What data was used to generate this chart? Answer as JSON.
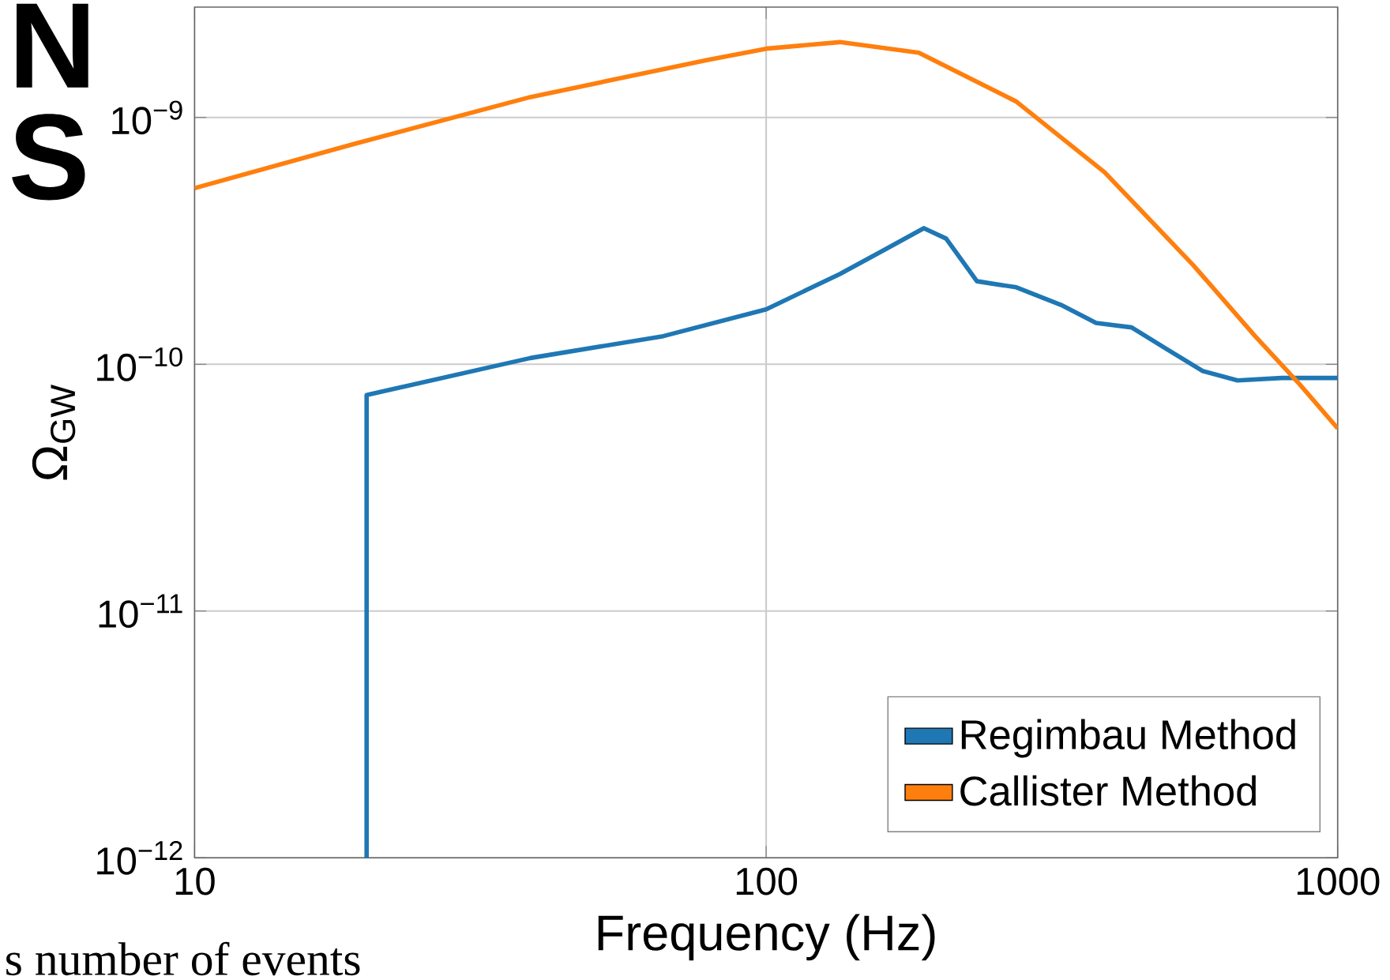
{
  "chart_data": {
    "type": "line",
    "xlabel": "Frequency (Hz)",
    "ylabel": "Ω$_{GW}$",
    "log": "xy",
    "grid": true,
    "legend": "bottom right",
    "xlim": [
      10,
      1000
    ],
    "ylim": [
      1e-12,
      2.8e-09
    ],
    "xticks": [
      10,
      100,
      1000
    ],
    "yticks": [
      {
        "value": 1e-12,
        "label": "10$^{−12}$"
      },
      {
        "value": 1e-11,
        "label": "10$^{−11}$"
      },
      {
        "value": 1e-10,
        "label": "10$^{−10}$"
      },
      {
        "value": 1e-09,
        "label": "10$^{−9}$"
      }
    ],
    "annotations": [
      "N",
      "S",
      "s number of events"
    ],
    "series": [
      {
        "name": "Regimbau Method",
        "color": "#1f77b4",
        "x": [
          20,
          20,
          38.7,
          66.1,
          100,
          134.6,
          160.7,
          188.8,
          206.5,
          233.8,
          274,
          328,
          378,
          436,
          503,
          580,
          668,
          798,
          1000
        ],
        "values": [
          1e-12,
          7.5e-11,
          1.06e-10,
          1.3e-10,
          1.67e-10,
          2.32e-10,
          2.9e-10,
          3.56e-10,
          3.23e-10,
          2.17e-10,
          2.05e-10,
          1.74e-10,
          1.47e-10,
          1.41e-10,
          1.15e-10,
          9.4e-11,
          8.6e-11,
          8.8e-11,
          8.8e-11
        ]
      },
      {
        "name": "Callister Method",
        "color": "#ff7f0e",
        "x": [
          10,
          18.97,
          38.7,
          78.9,
          100,
          134.6,
          185,
          274,
          391,
          559,
          717,
          858,
          1000
        ],
        "values": [
          5.17e-10,
          7.8e-10,
          1.21e-09,
          1.71e-09,
          1.9e-09,
          2.02e-09,
          1.83e-09,
          1.16e-09,
          6e-10,
          2.52e-10,
          1.3e-10,
          8.3e-11,
          5.5e-11
        ]
      }
    ]
  }
}
